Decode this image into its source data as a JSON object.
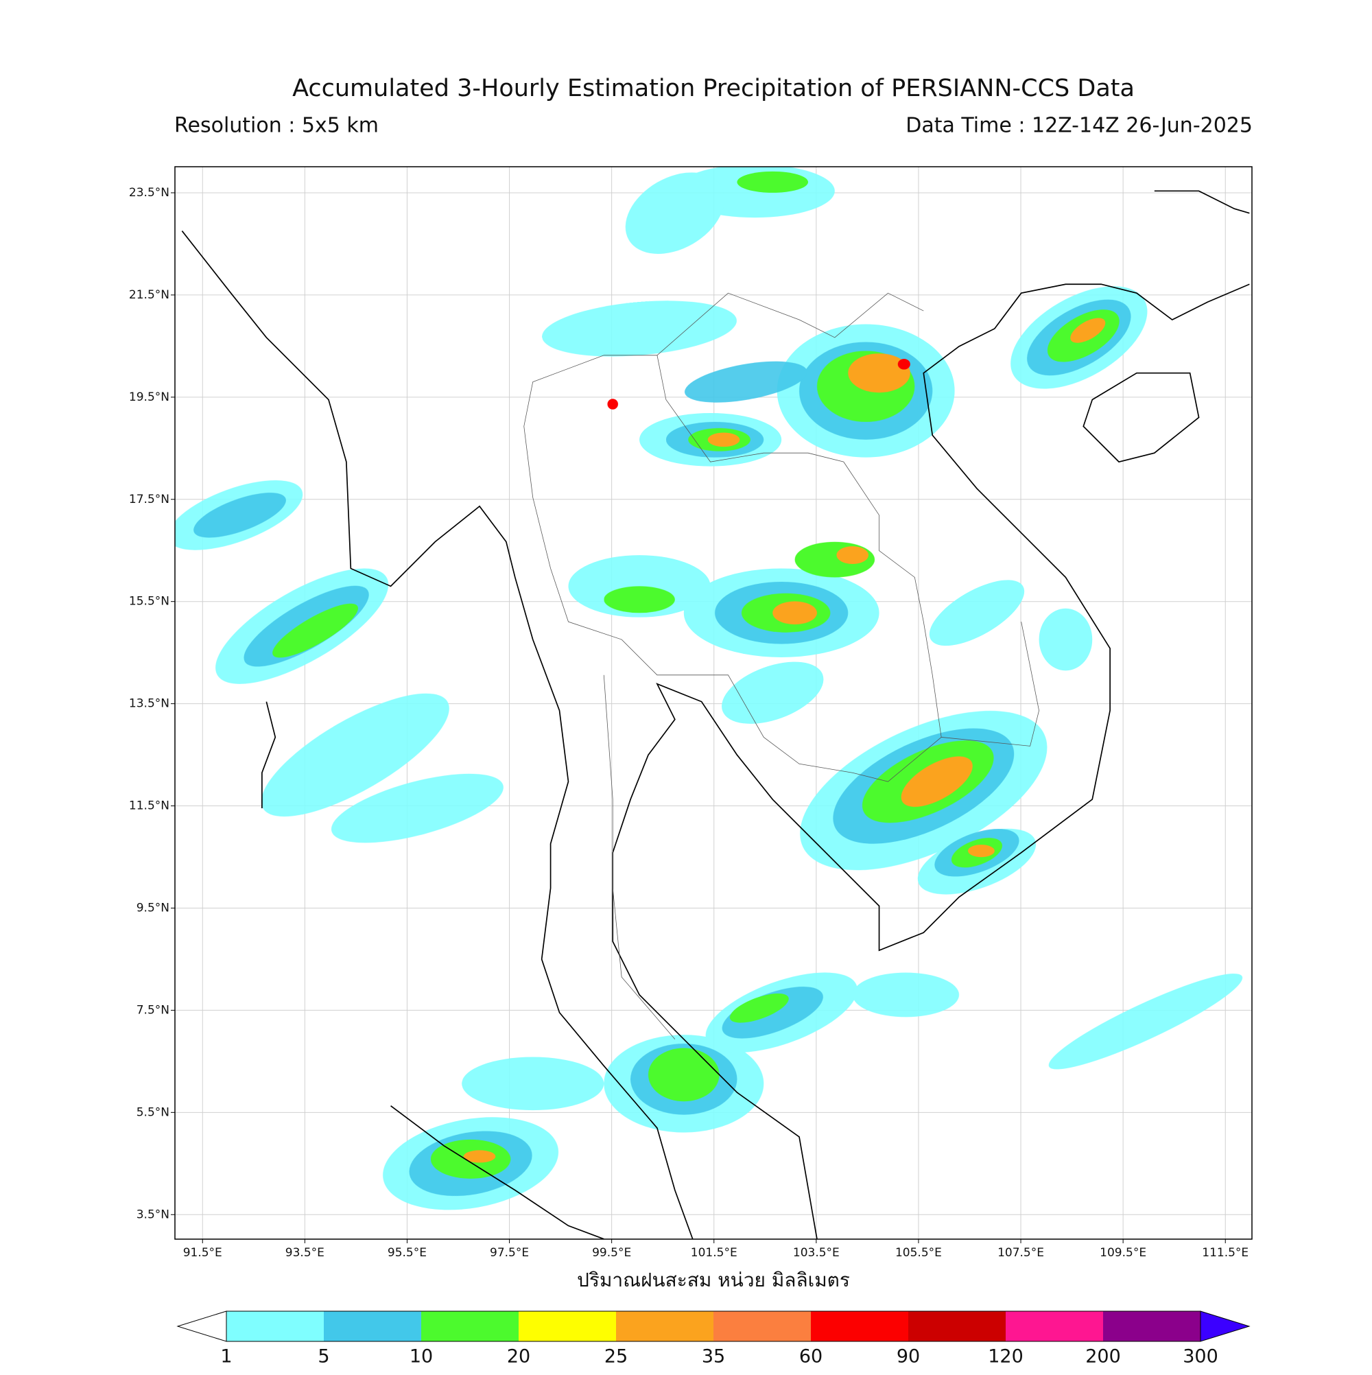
{
  "title": "Accumulated 3-Hourly Estimation Precipitation of PERSIANN-CCS Data",
  "resolution": "Resolution : 5x5 km",
  "data_time": "Data Time : 12Z-14Z 26-Jun-2025",
  "x_axis_label": "ปริมาณฝนสะสม หน่วย มิลลิเมตร",
  "xlim": [
    90.96,
    112.02
  ],
  "ylim": [
    3.02,
    24.01
  ],
  "xticks": [
    {
      "value": 91.5,
      "label": "91.5°E"
    },
    {
      "value": 93.5,
      "label": "93.5°E"
    },
    {
      "value": 95.5,
      "label": "95.5°E"
    },
    {
      "value": 97.5,
      "label": "97.5°E"
    },
    {
      "value": 99.5,
      "label": "99.5°E"
    },
    {
      "value": 101.5,
      "label": "101.5°E"
    },
    {
      "value": 103.5,
      "label": "103.5°E"
    },
    {
      "value": 105.5,
      "label": "105.5°E"
    },
    {
      "value": 107.5,
      "label": "107.5°E"
    },
    {
      "value": 109.5,
      "label": "109.5°E"
    },
    {
      "value": 111.5,
      "label": "111.5°E"
    }
  ],
  "yticks": [
    {
      "value": 3.5,
      "label": "3.5°N"
    },
    {
      "value": 5.5,
      "label": "5.5°N"
    },
    {
      "value": 7.5,
      "label": "7.5°N"
    },
    {
      "value": 9.5,
      "label": "9.5°N"
    },
    {
      "value": 11.5,
      "label": "11.5°N"
    },
    {
      "value": 13.5,
      "label": "13.5°N"
    },
    {
      "value": 15.5,
      "label": "15.5°N"
    },
    {
      "value": 17.5,
      "label": "17.5°N"
    },
    {
      "value": 19.5,
      "label": "19.5°N"
    },
    {
      "value": 21.5,
      "label": "21.5°N"
    },
    {
      "value": 23.5,
      "label": "23.5°N"
    }
  ],
  "grid": true,
  "colorbar": {
    "levels": [
      1,
      5,
      10,
      20,
      25,
      35,
      60,
      90,
      120,
      200,
      300
    ],
    "colors": [
      "#7ffeff",
      "#42c8ea",
      "#4cfa2d",
      "#fefe00",
      "#fba31e",
      "#fb7f3f",
      "#fc0000",
      "#cc0000",
      "#fe1691",
      "#8b008b"
    ],
    "under_color": "#ffffff",
    "over_color": "#3b00ff"
  }
}
